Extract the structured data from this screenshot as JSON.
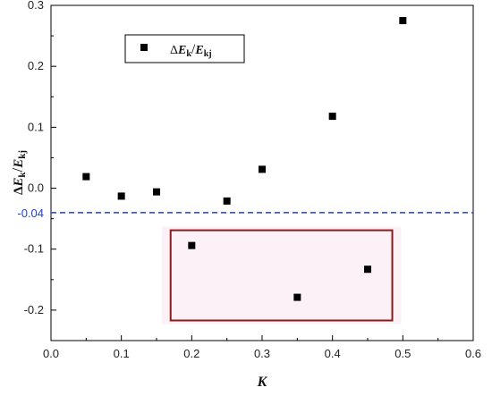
{
  "chart_data": {
    "type": "scatter",
    "xlabel": "K",
    "ylabel": {
      "delta": "Δ",
      "e1": "E",
      "s1": "k",
      "slash": "/",
      "e2": "E",
      "s2": "kj"
    },
    "xlim": [
      0.0,
      0.6
    ],
    "ylim": [
      -0.25,
      0.3
    ],
    "x_ticks": [
      "0.0",
      "0.1",
      "0.2",
      "0.3",
      "0.4",
      "0.5",
      "0.6"
    ],
    "y_ticks": [
      "-0.2",
      "-0.1",
      "0.0",
      "0.1",
      "0.2",
      "0.3"
    ],
    "grid": false,
    "legend_position": "top-left",
    "series": [
      {
        "name": "ΔE_k/E_kj",
        "marker": "square",
        "color": "#000000",
        "x": [
          0.05,
          0.1,
          0.15,
          0.2,
          0.25,
          0.3,
          0.35,
          0.4,
          0.45,
          0.5
        ],
        "y": [
          0.019,
          -0.013,
          -0.006,
          -0.094,
          -0.021,
          0.031,
          -0.179,
          0.118,
          -0.133,
          0.275
        ]
      }
    ],
    "reference_line": {
      "y": -0.04,
      "label": "-0.04",
      "style": "dashed",
      "color": "#1f3fd6"
    },
    "highlight_box": {
      "x_range": [
        0.17,
        0.485
      ],
      "y_range": [
        -0.217,
        -0.069
      ],
      "border_color": "#8b1a1a",
      "fill_color": "#fdf1f8"
    }
  },
  "legend": {
    "delta": "Δ",
    "e1": "E",
    "s1": "k",
    "slash": "/",
    "e2": "E",
    "s2": "kj"
  }
}
